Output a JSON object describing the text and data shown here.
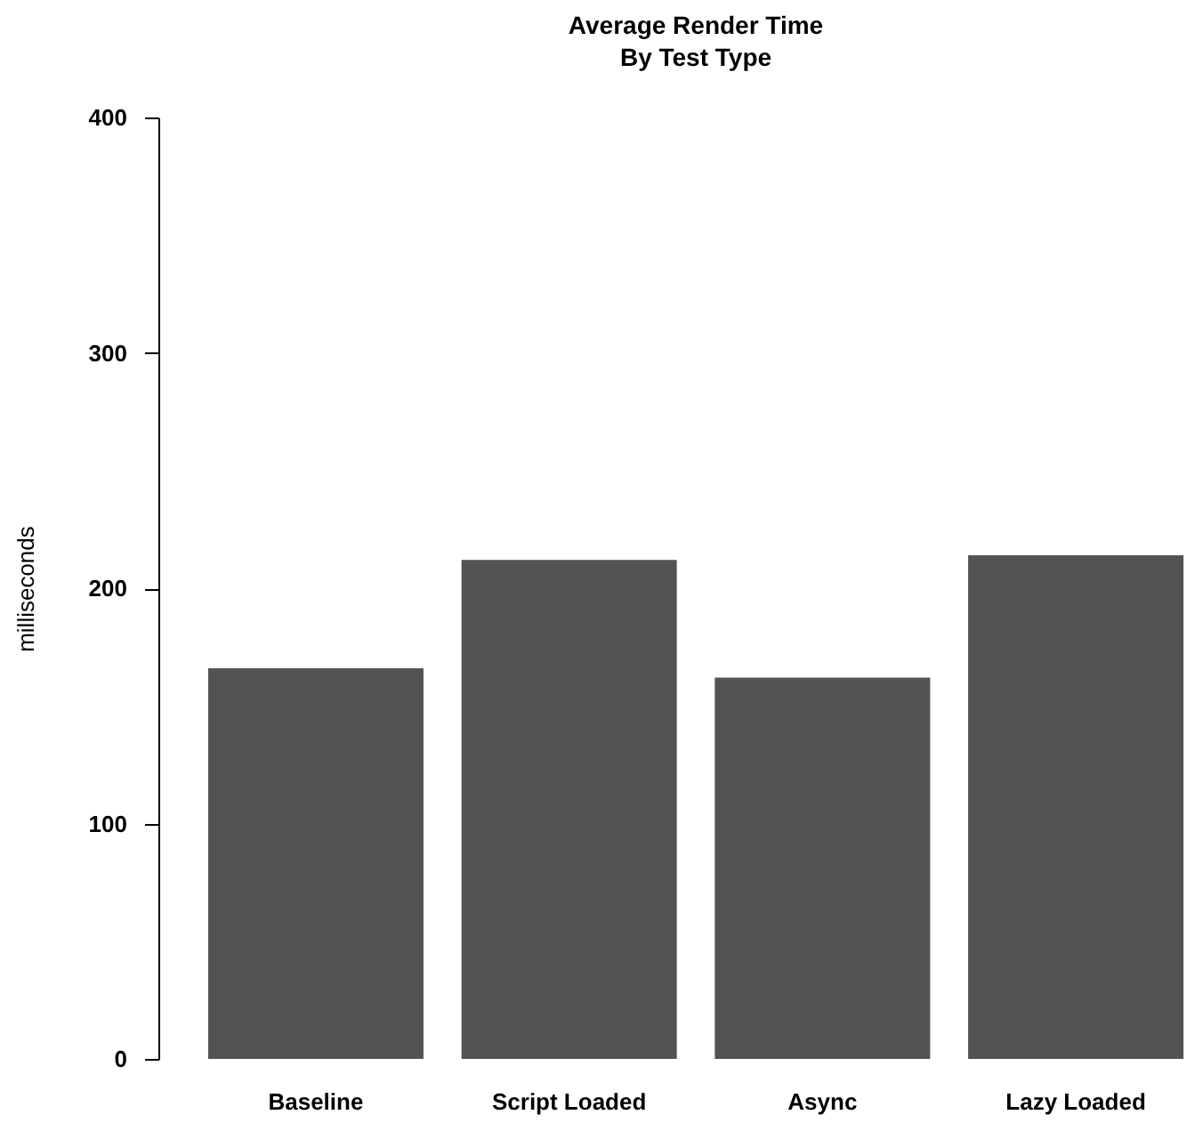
{
  "chart_data": {
    "type": "bar",
    "title": "Average Render Time",
    "subtitle": "By Test Type",
    "ylabel": "milliseconds",
    "categories": [
      "Baseline",
      "Script Loaded",
      "Async",
      "Lazy Loaded"
    ],
    "values": [
      166,
      212,
      162,
      214
    ],
    "color": "#545351",
    "ylim": [
      0,
      400
    ],
    "yticks": [
      0,
      100,
      200,
      300,
      400
    ],
    "grid": false
  }
}
